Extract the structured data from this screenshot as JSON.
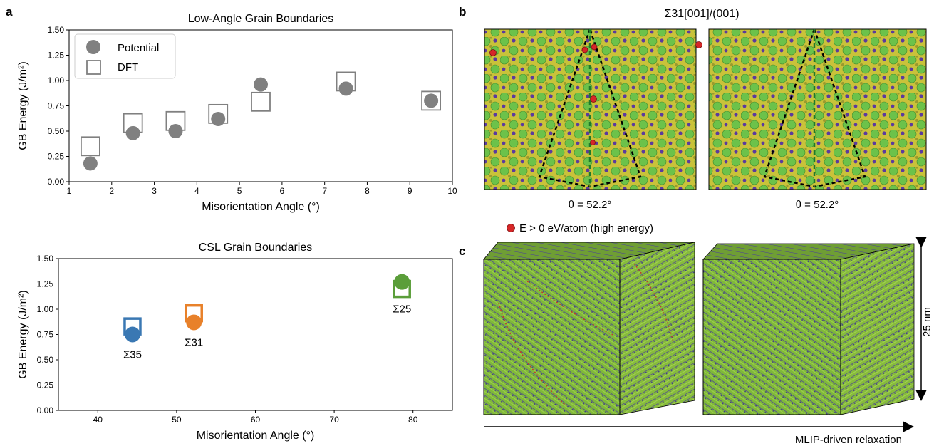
{
  "panel_labels": {
    "a": "a",
    "b": "b",
    "c": "c"
  },
  "panel_b": {
    "title": "Σ31[001]/(001)",
    "theta_left": "θ = 52.2°",
    "theta_right": "θ = 52.2°",
    "legend": "E > 0 eV/atom (high energy)"
  },
  "panel_c": {
    "scale_label": "25 nm",
    "arrow_label": "MLIP-driven relaxation"
  },
  "colors": {
    "potential": "#808080",
    "dft": "#808080",
    "s35": "#3a78b3",
    "s31": "#e8812a",
    "s25": "#5b9e3a",
    "high_energy": "#d62728",
    "atom_green": "#6cc24a",
    "atom_olive": "#9a9a2e",
    "atom_purple": "#5b3a9e"
  },
  "chart_data": [
    {
      "type": "scatter",
      "title": "Low-Angle Grain Boundaries",
      "xlabel": "Misorientation Angle (°)",
      "ylabel": "GB Energy (J/m²)",
      "xlim": [
        1,
        10
      ],
      "ylim": [
        0,
        1.5
      ],
      "xticks": [
        "1",
        "2",
        "3",
        "4",
        "5",
        "6",
        "7",
        "8",
        "9",
        "10"
      ],
      "yticks": [
        "0.00",
        "0.25",
        "0.50",
        "0.75",
        "1.00",
        "1.25",
        "1.50"
      ],
      "legend": {
        "placement": "top-left",
        "entries": [
          "Potential",
          "DFT"
        ]
      },
      "series": [
        {
          "name": "Potential",
          "marker": "circle",
          "x": [
            1.5,
            2.5,
            3.5,
            4.5,
            5.5,
            7.5,
            9.5
          ],
          "y": [
            0.18,
            0.48,
            0.5,
            0.62,
            0.96,
            0.92,
            0.8
          ]
        },
        {
          "name": "DFT",
          "marker": "square",
          "x": [
            1.5,
            2.5,
            3.5,
            4.5,
            5.5,
            7.5,
            9.5
          ],
          "y": [
            0.35,
            0.58,
            0.6,
            0.67,
            0.79,
            0.99,
            0.8
          ]
        }
      ]
    },
    {
      "type": "scatter",
      "title": "CSL Grain Boundaries",
      "xlabel": "Misorientation Angle (°)",
      "ylabel": "GB Energy (J/m²)",
      "xlim": [
        35,
        85
      ],
      "ylim": [
        0,
        1.5
      ],
      "xticks": [
        "40",
        "50",
        "60",
        "70",
        "80"
      ],
      "yticks": [
        "0.00",
        "0.25",
        "0.50",
        "0.75",
        "1.00",
        "1.25",
        "1.50"
      ],
      "points": [
        {
          "label": "Σ35",
          "x": 44.4,
          "potential": 0.75,
          "dft": 0.83,
          "color": "#3a78b3"
        },
        {
          "label": "Σ31",
          "x": 52.2,
          "potential": 0.87,
          "dft": 0.96,
          "color": "#e8812a"
        },
        {
          "label": "Σ25",
          "x": 78.6,
          "potential": 1.27,
          "dft": 1.2,
          "color": "#5b9e3a"
        }
      ]
    }
  ]
}
